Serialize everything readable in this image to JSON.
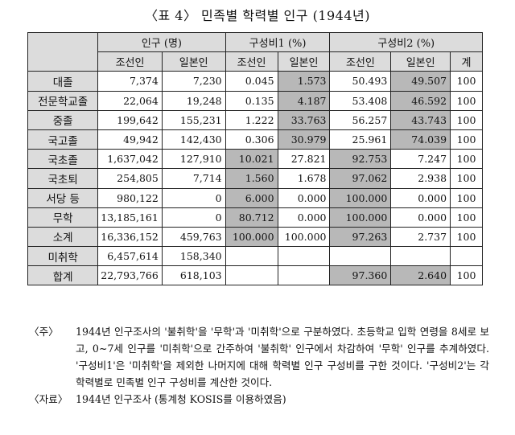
{
  "title": "〈표 4〉 민족별 학력별 인구 (1944년)",
  "headers": {
    "population": "인구 (명)",
    "ratio1": "구성비1 (%)",
    "ratio2": "구성비2 (%)",
    "korean": "조선인",
    "japanese": "일본인",
    "total": "계"
  },
  "rows": [
    {
      "label": "대졸",
      "pop_k": "7,374",
      "pop_j": "7,230",
      "r1_k": "0.045",
      "r1_j": "1.573",
      "r2_k": "50.493",
      "r2_j": "49.507",
      "total": "100",
      "hl": [
        "r1_j",
        "r2_j"
      ]
    },
    {
      "label": "전문학교졸",
      "pop_k": "22,064",
      "pop_j": "19,248",
      "r1_k": "0.135",
      "r1_j": "4.187",
      "r2_k": "53.408",
      "r2_j": "46.592",
      "total": "100",
      "hl": [
        "r1_j",
        "r2_j"
      ]
    },
    {
      "label": "중졸",
      "pop_k": "199,642",
      "pop_j": "155,231",
      "r1_k": "1.222",
      "r1_j": "33.763",
      "r2_k": "56.257",
      "r2_j": "43.743",
      "total": "100",
      "hl": [
        "r1_j",
        "r2_j"
      ]
    },
    {
      "label": "국고졸",
      "pop_k": "49,942",
      "pop_j": "142,430",
      "r1_k": "0.306",
      "r1_j": "30.979",
      "r2_k": "25.961",
      "r2_j": "74.039",
      "total": "100",
      "hl": [
        "r1_j",
        "r2_j"
      ]
    },
    {
      "label": "국초졸",
      "pop_k": "1,637,042",
      "pop_j": "127,910",
      "r1_k": "10.021",
      "r1_j": "27.821",
      "r2_k": "92.753",
      "r2_j": "7.247",
      "total": "100",
      "hl": [
        "r1_k",
        "r2_k"
      ]
    },
    {
      "label": "국초퇴",
      "pop_k": "254,805",
      "pop_j": "7,714",
      "r1_k": "1.560",
      "r1_j": "1.678",
      "r2_k": "97.062",
      "r2_j": "2.938",
      "total": "100",
      "hl": [
        "r1_k",
        "r2_k"
      ]
    },
    {
      "label": "서당 등",
      "pop_k": "980,122",
      "pop_j": "0",
      "r1_k": "6.000",
      "r1_j": "0.000",
      "r2_k": "100.000",
      "r2_j": "0.000",
      "total": "100",
      "hl": [
        "r1_k",
        "r2_k"
      ]
    },
    {
      "label": "무학",
      "pop_k": "13,185,161",
      "pop_j": "0",
      "r1_k": "80.712",
      "r1_j": "0.000",
      "r2_k": "100.000",
      "r2_j": "0.000",
      "total": "100",
      "hl": [
        "r1_k",
        "r2_k"
      ]
    },
    {
      "label": "소계",
      "pop_k": "16,336,152",
      "pop_j": "459,763",
      "r1_k": "100.000",
      "r1_j": "100.000",
      "r2_k": "97.263",
      "r2_j": "2.737",
      "total": "100",
      "hl": [
        "r1_k",
        "r2_k"
      ]
    },
    {
      "label": "미취학",
      "pop_k": "6,457,614",
      "pop_j": "158,340",
      "r1_k": "",
      "r1_j": "",
      "r2_k": "",
      "r2_j": "",
      "total": "",
      "hl": []
    },
    {
      "label": "합계",
      "pop_k": "22,793,766",
      "pop_j": "618,103",
      "r1_k": "",
      "r1_j": "",
      "r2_k": "97.360",
      "r2_j": "2.640",
      "total": "100",
      "hl": [
        "r2_k",
        "r2_j"
      ]
    }
  ],
  "notes": [
    {
      "label": "〈주〉",
      "text": "1944년 인구조사의 '불취학'을 '무학'과 '미취학'으로 구분하였다. 초등학교 입학 연령을 8세로 보고, 0~7세 인구를 '미취학'으로 간주하여 '불취학' 인구에서 차감하여 '무학' 인구를 추계하였다. '구성비1'은 '미취학'을 제외한 나머지에 대해 학력별 인구 구성비를 구한 것이다. '구성비2'는 각 학력별로 민족별 인구 구성비를 계산한 것이다."
    },
    {
      "label": "〈자료〉",
      "text": "1944년 인구조사 (통계청 KOSIS를 이용하였음)"
    }
  ],
  "colors": {
    "header_bg": "#dcdcdc",
    "highlight_bg": "#b8b8b8"
  }
}
